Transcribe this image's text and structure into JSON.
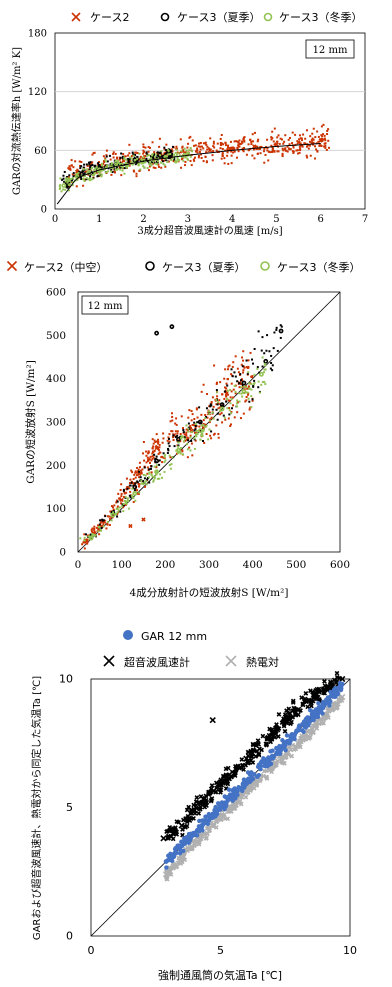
{
  "chart_data": [
    {
      "type": "scatter",
      "legend": [
        "ケース2",
        "ケース3（夏季）",
        "ケース3（冬季）"
      ],
      "legend_position": "top",
      "annotation": "12 mm",
      "xlabel": "3成分超音波風速計の風速 [m/s]",
      "ylabel": "GARの対流熱伝達率h [W/m² K]",
      "xlim": [
        0,
        7
      ],
      "ylim": [
        0,
        180
      ],
      "xticks": [
        "0",
        "1",
        "2",
        "3",
        "4",
        "5",
        "6",
        "7"
      ],
      "yticks": [
        "0",
        "60",
        "120",
        "180"
      ],
      "grid": "horizontal",
      "colors": {
        "ケース2": "#cc3300",
        "ケース3（夏季）": "#000000",
        "ケース3（冬季）": "#92c353"
      },
      "series": [
        {
          "name": "ケース2",
          "marker": "x",
          "x": [
            0.5,
            1.0,
            1.5,
            2.0,
            2.5,
            3.0,
            3.5,
            4.0,
            4.5,
            5.0,
            5.5,
            6.0
          ],
          "y": [
            38,
            44,
            47,
            51,
            54,
            57,
            60,
            62,
            64,
            66,
            68,
            70
          ]
        },
        {
          "name": "ケース3（夏季）",
          "marker": "circle",
          "x": [
            0.3,
            0.6,
            1.0,
            1.4,
            1.8,
            2.2,
            2.6
          ],
          "y": [
            28,
            36,
            42,
            46,
            50,
            53,
            56
          ]
        },
        {
          "name": "ケース3（冬季）",
          "marker": "circle",
          "x": [
            0.2,
            0.5,
            1.0,
            1.5,
            2.0,
            2.5,
            3.0
          ],
          "y": [
            24,
            33,
            40,
            45,
            49,
            53,
            56
          ]
        }
      ],
      "fit_curve": {
        "x": [
          0.05,
          0.5,
          1,
          2,
          3,
          4,
          5,
          6
        ],
        "y": [
          5,
          32,
          40,
          49,
          55,
          60,
          64,
          67
        ]
      }
    },
    {
      "type": "scatter",
      "legend": [
        "ケース2（中空）",
        "ケース3（夏季）",
        "ケース3（冬季）"
      ],
      "legend_position": "top",
      "annotation": "12 mm",
      "xlabel": "4成分放射計の短波放射S [W/m²]",
      "ylabel": "GARの短波放射S [W/m²]",
      "xlim": [
        0,
        600
      ],
      "ylim": [
        0,
        600
      ],
      "xticks": [
        "0",
        "100",
        "200",
        "300",
        "400",
        "500",
        "600"
      ],
      "yticks": [
        "0",
        "100",
        "200",
        "300",
        "400",
        "500",
        "600"
      ],
      "grid": "none",
      "colors": {
        "ケース2（中空）": "#cc3300",
        "ケース3（夏季）": "#000000",
        "ケース3（冬季）": "#92c353"
      },
      "series": [
        {
          "name": "ケース2（中空）",
          "marker": "x",
          "x": [
            20,
            60,
            100,
            140,
            180,
            220,
            260,
            300,
            340,
            370,
            120,
            150
          ],
          "y": [
            25,
            70,
            120,
            180,
            240,
            270,
            280,
            320,
            370,
            390,
            60,
            75
          ]
        },
        {
          "name": "ケース3（夏季）",
          "marker": "circle",
          "x": [
            30,
            80,
            130,
            180,
            230,
            280,
            330,
            380,
            430,
            465,
            180,
            215
          ],
          "y": [
            35,
            90,
            150,
            210,
            260,
            300,
            340,
            390,
            440,
            510,
            505,
            520
          ]
        },
        {
          "name": "ケース3（冬季）",
          "marker": "circle",
          "x": [
            30,
            80,
            130,
            180,
            230,
            280,
            330,
            380,
            420
          ],
          "y": [
            32,
            85,
            135,
            185,
            235,
            280,
            330,
            370,
            410
          ]
        }
      ],
      "one_to_one_line": true
    },
    {
      "type": "scatter",
      "legend": [
        "GAR 12 mm",
        "超音波風速計",
        "熱電対"
      ],
      "legend_position": "top",
      "xlabel": "強制通風筒の気温Ta [℃]",
      "ylabel": "GARおよび超音波風速計、熱電対から同定した気温Ta [℃]",
      "xlim": [
        0,
        10
      ],
      "ylim": [
        0,
        10
      ],
      "xticks": [
        "0",
        "5",
        "10"
      ],
      "yticks": [
        "0",
        "5",
        "10"
      ],
      "grid": "none",
      "colors": {
        "GAR 12 mm": "#4472c4",
        "超音波風速計": "#000000",
        "熱電対": "#b0b0b0"
      },
      "series": [
        {
          "name": "GAR 12 mm",
          "marker": "circle",
          "x": [
            2.9,
            3.5,
            4.0,
            5.0,
            6.0,
            7.0,
            8.0,
            9.0,
            9.7
          ],
          "y": [
            2.9,
            3.5,
            4.0,
            5.0,
            6.0,
            7.0,
            8.0,
            9.0,
            9.8
          ]
        },
        {
          "name": "超音波風速計",
          "marker": "x",
          "x": [
            2.8,
            3.5,
            4.0,
            5.0,
            6.0,
            7.0,
            8.0,
            9.0,
            9.7,
            4.7
          ],
          "y": [
            3.8,
            4.3,
            4.9,
            5.9,
            6.9,
            7.9,
            8.8,
            9.6,
            10.0,
            8.4
          ]
        },
        {
          "name": "熱電対",
          "marker": "x",
          "x": [
            2.9,
            3.5,
            4.0,
            5.0,
            6.0,
            7.0,
            8.0,
            9.0,
            9.7
          ],
          "y": [
            2.4,
            3.0,
            3.6,
            4.6,
            5.6,
            6.6,
            7.5,
            8.5,
            9.3
          ]
        }
      ],
      "one_to_one_line": true
    }
  ]
}
